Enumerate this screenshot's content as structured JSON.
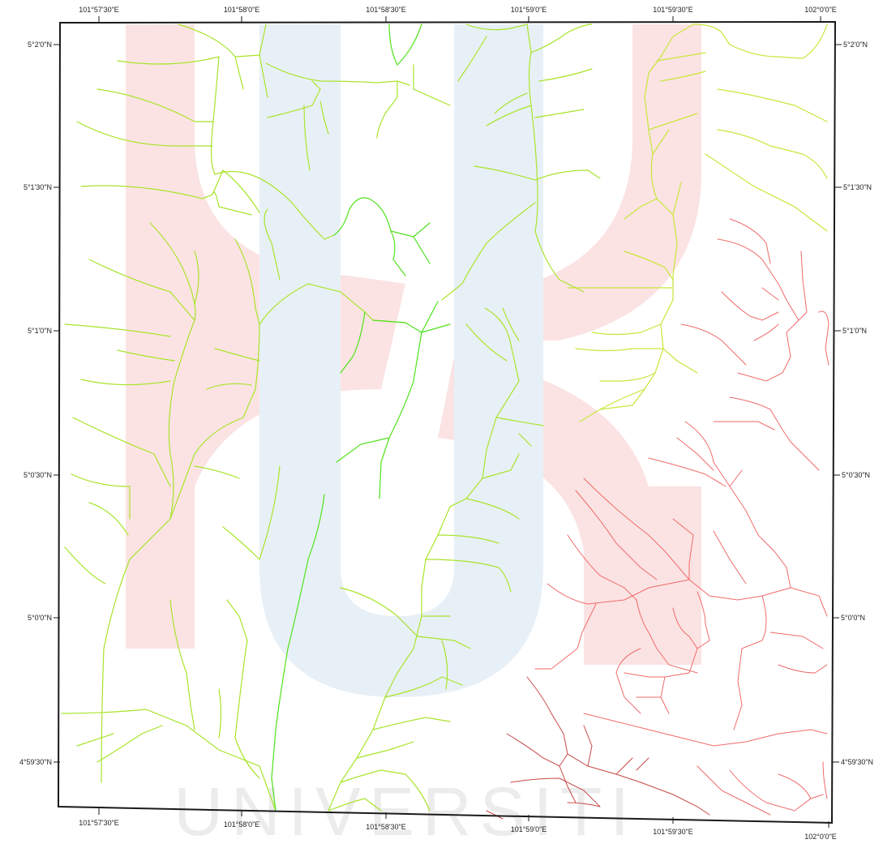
{
  "map": {
    "top_labels": [
      "101°57'30\"E",
      "101°58'0\"E",
      "101°58'30\"E",
      "101°59'0\"E",
      "101°59'30\"E",
      "102°0'0\"E"
    ],
    "bottom_labels": [
      "101°57'30\"E",
      "101°58'0\"E",
      "101°58'30\"E",
      "101°59'0\"E",
      "101°59'30\"E",
      "102°0'0\"E"
    ],
    "left_labels": [
      "5°2'0\"N",
      "5°1'30\"N",
      "5°1'0\"N",
      "5°0'30\"N",
      "5°0'0\"N",
      "4°59'30\"N"
    ],
    "right_labels": [
      "5°2'0\"N",
      "5°1'30\"N",
      "5°1'0\"N",
      "5°0'30\"N",
      "5°0'0\"N",
      "4°59'30\"N"
    ],
    "watermark_text": "UNIVERSITI"
  },
  "colors": {
    "frame": "#1a1a1a",
    "stream_lime": "#a8e42a",
    "stream_green": "#4fe21a",
    "stream_yellow": "#c8e63a",
    "stream_red": "#f06a6a",
    "stream_darkred": "#c84848",
    "watermark_pink": "#fbe3e3",
    "watermark_blue": "#e6eef6",
    "watermark_text": "#ececec"
  }
}
